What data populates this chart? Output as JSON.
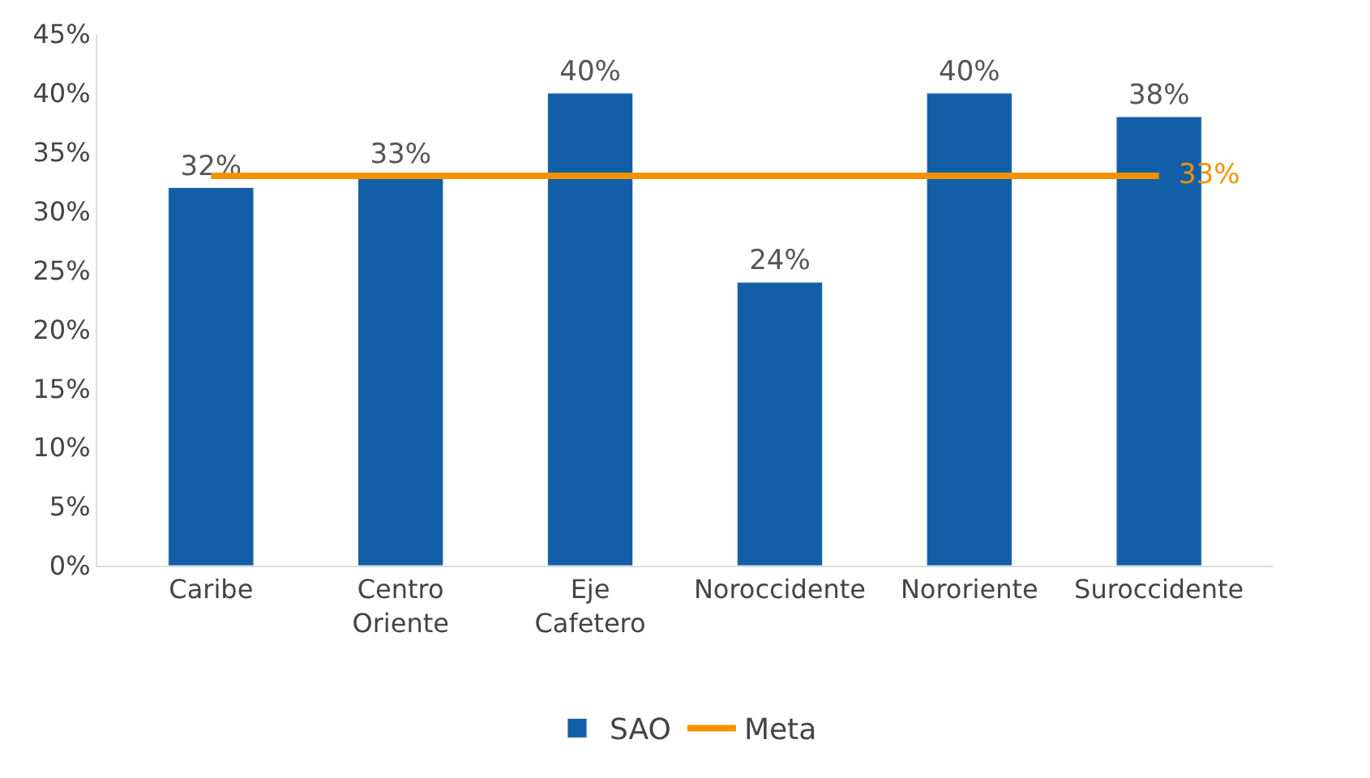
{
  "chart_data": {
    "type": "bar",
    "categories": [
      "Caribe",
      "Centro Oriente",
      "Eje Cafetero",
      "Noroccidente",
      "Nororiente",
      "Suroccidente"
    ],
    "series": [
      {
        "name": "SAO",
        "color": "#125fa8",
        "values": [
          32,
          33,
          40,
          24,
          40,
          38
        ],
        "value_labels": [
          "32%",
          "33%",
          "40%",
          "24%",
          "40%",
          "38%"
        ]
      },
      {
        "name": "Meta",
        "type": "line",
        "color": "#f39200",
        "values": [
          33,
          33,
          33,
          33,
          33,
          33
        ],
        "value_labels": [
          null,
          null,
          null,
          null,
          null,
          "33%"
        ]
      }
    ],
    "ylim": [
      0,
      45
    ],
    "yticks": [
      {
        "value": 0,
        "label": "0%"
      },
      {
        "value": 5,
        "label": "5%"
      },
      {
        "value": 10,
        "label": "10%"
      },
      {
        "value": 15,
        "label": "15%"
      },
      {
        "value": 20,
        "label": "20%"
      },
      {
        "value": 25,
        "label": "25%"
      },
      {
        "value": 30,
        "label": "30%"
      },
      {
        "value": 35,
        "label": "35%"
      },
      {
        "value": 40,
        "label": "40%"
      },
      {
        "value": 45,
        "label": "45%"
      }
    ],
    "legend": "bottom",
    "marker": "none",
    "line_style": "solid"
  }
}
